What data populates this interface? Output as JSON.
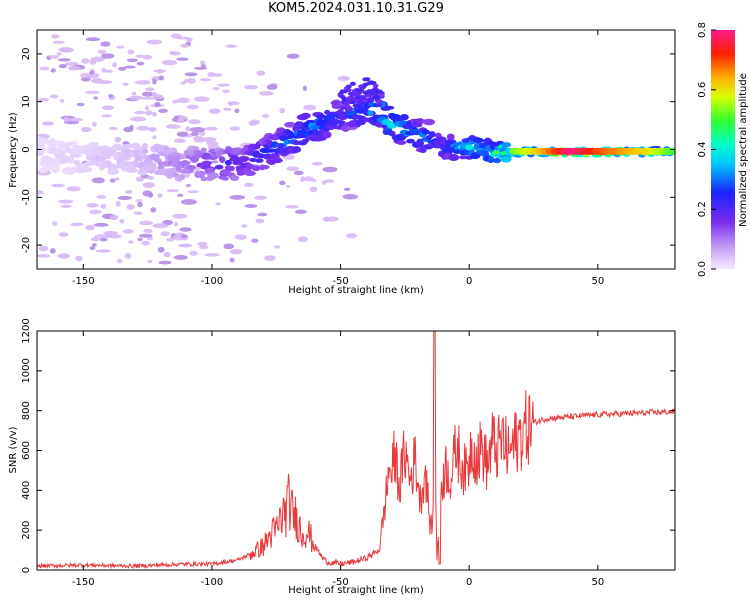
{
  "title": "KOM5.2024.031.10.31.G29",
  "chart_data": [
    {
      "type": "heatmap",
      "xlabel": "Height of straight line (km)",
      "ylabel": "Frequency (Hz)",
      "xlim": [
        -168,
        80
      ],
      "ylim": [
        -25,
        25
      ],
      "xticks": [
        -150,
        -100,
        -50,
        0,
        50
      ],
      "yticks": [
        -20,
        -10,
        0,
        10,
        20
      ],
      "grid": false,
      "colorbar": {
        "label": "Normalized spectral amplitude",
        "range": [
          0.0,
          0.8
        ],
        "ticks": [
          "0.0",
          "0.2",
          "0.4",
          "0.6",
          "0.8"
        ]
      },
      "trace": {
        "x": [
          -168,
          -150,
          -130,
          -110,
          -100,
          -90,
          -80,
          -70,
          -60,
          -50,
          -40,
          -35,
          -30,
          -25,
          -20,
          -15,
          -12,
          -10,
          -5,
          0,
          5,
          10,
          15,
          20,
          30,
          40,
          50,
          60,
          70,
          80
        ],
        "y": [
          -1,
          -2,
          -2,
          -3,
          -3,
          -3,
          -1,
          2,
          5,
          7,
          8,
          8.5,
          5,
          4,
          3,
          2.5,
          1,
          0.5,
          0.5,
          0.5,
          0.5,
          -1,
          -0.5,
          -0.5,
          -0.5,
          -0.5,
          -0.5,
          -0.5,
          -0.5,
          -0.5
        ],
        "amplitude": [
          0.02,
          0.03,
          0.05,
          0.12,
          0.18,
          0.22,
          0.25,
          0.3,
          0.32,
          0.25,
          0.3,
          0.4,
          0.35,
          0.35,
          0.3,
          0.3,
          0.25,
          0.28,
          0.35,
          0.4,
          0.4,
          0.45,
          0.5,
          0.55,
          0.65,
          0.8,
          0.7,
          0.65,
          0.6,
          0.5
        ]
      },
      "upper_branch": {
        "x": [
          -50,
          -45,
          -40,
          -37,
          -34
        ],
        "y": [
          10,
          12,
          13,
          12,
          10
        ],
        "amplitude": [
          0.15,
          0.15,
          0.15,
          0.15,
          0.15
        ]
      }
    },
    {
      "type": "line",
      "xlabel": "Height of straight line (km)",
      "ylabel": "SNR (v/v)",
      "xlim": [
        -168,
        80
      ],
      "ylim": [
        0,
        1200
      ],
      "xticks": [
        -150,
        -100,
        -50,
        0,
        50
      ],
      "yticks": [
        0,
        200,
        400,
        600,
        800,
        1000,
        1200
      ],
      "grid": false,
      "series": [
        {
          "color": "#e8393c",
          "x": [
            -168,
            -150,
            -130,
            -110,
            -100,
            -95,
            -90,
            -85,
            -80,
            -77,
            -75,
            -73,
            -71,
            -70,
            -69,
            -67,
            -65,
            -63,
            -60,
            -57,
            -55,
            -50,
            -45,
            -40,
            -35,
            -33,
            -31,
            -30,
            -29,
            -27,
            -25,
            -23,
            -21,
            -19,
            -17,
            -15,
            -14,
            -13.5,
            -13,
            -12.5,
            -11,
            -9,
            -7,
            -5,
            -3,
            -1,
            1,
            3,
            5,
            7,
            9,
            11,
            13,
            15,
            18,
            21,
            25,
            30,
            40,
            50,
            60,
            70,
            80
          ],
          "y": [
            20,
            25,
            20,
            30,
            30,
            40,
            50,
            80,
            120,
            180,
            200,
            260,
            300,
            350,
            290,
            260,
            180,
            200,
            120,
            60,
            40,
            30,
            40,
            60,
            100,
            300,
            520,
            480,
            580,
            420,
            600,
            450,
            560,
            350,
            500,
            200,
            280,
            1200,
            400,
            60,
            420,
            520,
            460,
            620,
            540,
            480,
            640,
            560,
            620,
            520,
            640,
            600,
            660,
            580,
            640,
            700,
            740,
            760,
            770,
            780,
            785,
            790,
            795
          ]
        }
      ]
    }
  ]
}
